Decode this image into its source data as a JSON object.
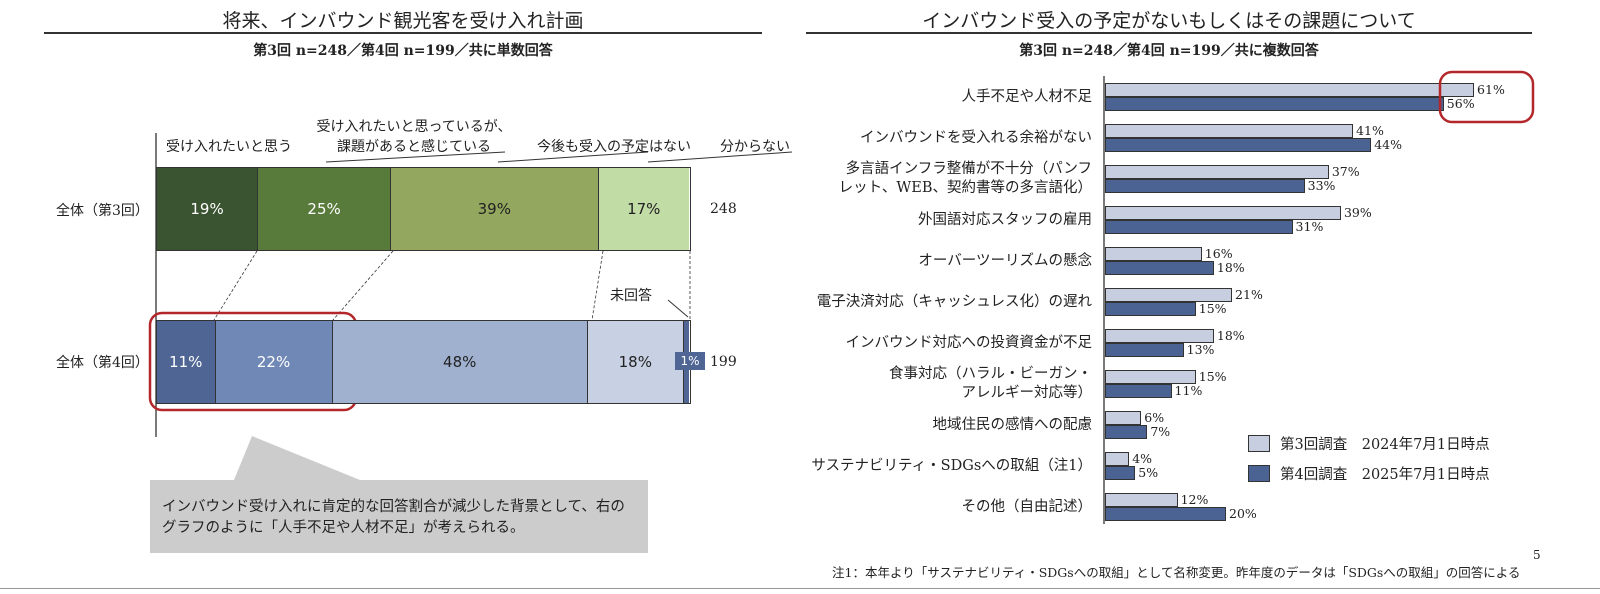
{
  "left": {
    "title": "将来、インバウンド観光客を受け入れ計画",
    "subtitle": "第3回 n=248／第4回 n=199／共に単数回答",
    "categories": [
      {
        "label_lines": [
          "受け入れたいと思う"
        ]
      },
      {
        "label_lines": [
          "受け入れたいと思っているが、",
          "課題があると感じている"
        ]
      },
      {
        "label_lines": [
          "今後も受入の予定はない"
        ]
      },
      {
        "label_lines": [
          "分からない"
        ]
      }
    ],
    "no_answer_label": "未回答",
    "callout_text": "インバウンド受け入れに肯定的な回答割合が減少した背景として、右のグラフのように「人手不足や人材不足」が考えられる。"
  },
  "right": {
    "title": "インバウンド受入の予定がないもしくはその課題について",
    "subtitle": "第3回 n=248／第4回 n=199／共に複数回答",
    "footnote": "注1：本年より「サステナビリティ・SDGsへの取組」として名称変更。昨年度のデータは「SDGsへの取組」の回答による"
  },
  "page_number": "5",
  "chart_data": [
    {
      "type": "bar",
      "orientation": "horizontal-stacked-100",
      "categories": [
        "受け入れたいと思う",
        "受け入れたいと思っているが、課題があると感じている",
        "今後も受入の予定はない",
        "分からない",
        "未回答"
      ],
      "rows": [
        {
          "label": "全体（第3回）",
          "n": "248",
          "values": [
            19,
            25,
            39,
            17,
            null
          ],
          "value_labels": [
            "19%",
            "25%",
            "39%",
            "17%",
            ""
          ]
        },
        {
          "label": "全体（第4回）",
          "n": "199",
          "values": [
            11,
            22,
            48,
            18,
            1
          ],
          "value_labels": [
            "11%",
            "22%",
            "48%",
            "18%",
            "1%"
          ]
        }
      ],
      "colors": {
        "row1": [
          "#3a5330",
          "#587a3a",
          "#93a85e",
          "#c2dca6"
        ],
        "row2": [
          "#4f6695",
          "#7088b5",
          "#a0b0cf",
          "#c8d1e3",
          "#4f6695"
        ]
      },
      "xlim": [
        0,
        100
      ]
    },
    {
      "type": "bar",
      "orientation": "horizontal",
      "xlim": [
        0,
        70
      ],
      "categories": [
        {
          "label_lines": [
            "人手不足や人材不足"
          ]
        },
        {
          "label_lines": [
            "インバウンドを受入れる余裕がない"
          ]
        },
        {
          "label_lines": [
            "多言語インフラ整備が不十分（パンフ",
            "レット、WEB、契約書等の多言語化）"
          ]
        },
        {
          "label_lines": [
            "外国語対応スタッフの雇用"
          ]
        },
        {
          "label_lines": [
            "オーバーツーリズムの懸念"
          ]
        },
        {
          "label_lines": [
            "電子決済対応（キャッシュレス化）の遅れ"
          ]
        },
        {
          "label_lines": [
            "インバウンド対応への投資資金が不足"
          ]
        },
        {
          "label_lines": [
            "食事対応（ハラル・ビーガン・",
            "アレルギー対応等）"
          ]
        },
        {
          "label_lines": [
            "地域住民の感情への配慮"
          ]
        },
        {
          "label_lines": [
            "サステナビリティ・SDGsへの取組（注1）"
          ]
        },
        {
          "label_lines": [
            "その他（自由記述）"
          ]
        }
      ],
      "series": [
        {
          "name": "第3回調査　2024年7月1日時点",
          "color": "#c6cee0",
          "values": [
            61,
            41,
            37,
            39,
            16,
            21,
            18,
            15,
            6,
            4,
            12
          ]
        },
        {
          "name": "第4回調査　2025年7月1日時点",
          "color": "#4b6392",
          "values": [
            56,
            44,
            33,
            31,
            18,
            15,
            13,
            11,
            7,
            5,
            20
          ]
        }
      ],
      "legend": "bottom-right"
    }
  ]
}
